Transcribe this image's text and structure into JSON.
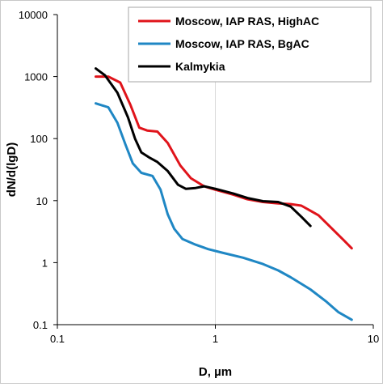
{
  "chart_data": {
    "type": "line",
    "title": "",
    "xlabel": "D, µm",
    "ylabel": "dN/d(lgD)",
    "xscale": "log",
    "yscale": "log",
    "xlim": [
      0.1,
      10
    ],
    "ylim": [
      0.1,
      10000
    ],
    "x_ticks": [
      "0.1",
      "1",
      "10"
    ],
    "y_ticks": [
      "0.1",
      "1",
      "10",
      "100",
      "1000",
      "10000"
    ],
    "grid": "vertical at x=1 only",
    "legend_position": "top-right",
    "series": [
      {
        "name": "Moscow, IAP RAS, HighAC",
        "color": "#e0141b",
        "points": [
          [
            0.175,
            1000
          ],
          [
            0.21,
            1000
          ],
          [
            0.25,
            800
          ],
          [
            0.29,
            350
          ],
          [
            0.33,
            150
          ],
          [
            0.37,
            135
          ],
          [
            0.43,
            130
          ],
          [
            0.5,
            85
          ],
          [
            0.6,
            37
          ],
          [
            0.7,
            23
          ],
          [
            0.85,
            17
          ],
          [
            1.0,
            15
          ],
          [
            1.3,
            12.5
          ],
          [
            1.6,
            10.5
          ],
          [
            2.0,
            9.5
          ],
          [
            2.5,
            9
          ],
          [
            3.0,
            8.8
          ],
          [
            3.5,
            8.3
          ],
          [
            4.5,
            5.8
          ],
          [
            5.5,
            3.5
          ],
          [
            6.5,
            2.3
          ],
          [
            7.3,
            1.7
          ]
        ]
      },
      {
        "name": "Moscow, IAP RAS, BgAC",
        "color": "#1f87c4",
        "points": [
          [
            0.175,
            370
          ],
          [
            0.21,
            320
          ],
          [
            0.24,
            180
          ],
          [
            0.27,
            80
          ],
          [
            0.3,
            40
          ],
          [
            0.34,
            28
          ],
          [
            0.4,
            25
          ],
          [
            0.45,
            15
          ],
          [
            0.5,
            6
          ],
          [
            0.55,
            3.5
          ],
          [
            0.62,
            2.4
          ],
          [
            0.75,
            1.95
          ],
          [
            0.9,
            1.65
          ],
          [
            1.1,
            1.45
          ],
          [
            1.5,
            1.2
          ],
          [
            2.0,
            0.95
          ],
          [
            2.5,
            0.75
          ],
          [
            3.0,
            0.58
          ],
          [
            4.0,
            0.37
          ],
          [
            5.0,
            0.24
          ],
          [
            6.0,
            0.16
          ],
          [
            7.3,
            0.12
          ]
        ]
      },
      {
        "name": "Kalmykia",
        "color": "#000000",
        "points": [
          [
            0.175,
            1350
          ],
          [
            0.2,
            1050
          ],
          [
            0.24,
            550
          ],
          [
            0.28,
            220
          ],
          [
            0.31,
            100
          ],
          [
            0.34,
            60
          ],
          [
            0.38,
            50
          ],
          [
            0.43,
            42
          ],
          [
            0.5,
            30
          ],
          [
            0.58,
            18
          ],
          [
            0.65,
            15.5
          ],
          [
            0.75,
            16
          ],
          [
            0.85,
            17
          ],
          [
            1.0,
            15.5
          ],
          [
            1.3,
            13
          ],
          [
            1.6,
            11
          ],
          [
            2.0,
            9.8
          ],
          [
            2.5,
            9.5
          ],
          [
            3.0,
            8
          ],
          [
            3.5,
            5.5
          ],
          [
            4.0,
            3.9
          ]
        ]
      }
    ]
  }
}
